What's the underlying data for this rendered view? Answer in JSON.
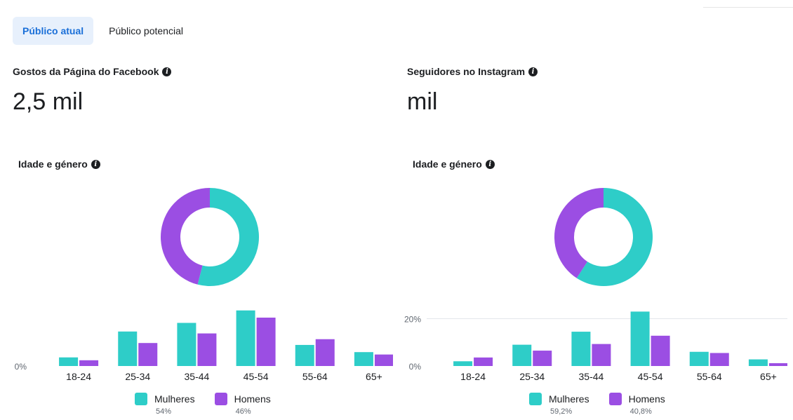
{
  "tabs": [
    {
      "label": "Público atual",
      "active": true
    },
    {
      "label": "Público potencial",
      "active": false
    }
  ],
  "colors": {
    "mulheres": "#2ecdc8",
    "homens": "#9b4ee3",
    "accent": "#1a6fd8"
  },
  "facebook": {
    "metric_title": "Gostos da Página do Facebook",
    "metric_value": "2,5 mil",
    "section_title": "Idade e género",
    "legend": {
      "mulheres_label": "Mulheres",
      "mulheres_pct": "54%",
      "homens_label": "Homens",
      "homens_pct": "46%"
    }
  },
  "instagram": {
    "metric_title": "Seguidores no Instagram",
    "metric_value": "mil",
    "section_title": "Idade e género",
    "legend": {
      "mulheres_label": "Mulheres",
      "mulheres_pct": "59,2%",
      "homens_label": "Homens",
      "homens_pct": "40,8%"
    }
  },
  "chart_data": [
    {
      "type": "pie",
      "labels": [
        "Mulheres",
        "Homens"
      ],
      "values": [
        54,
        46
      ],
      "donut": true
    },
    {
      "type": "bar",
      "categories": [
        "18-24",
        "25-34",
        "35-44",
        "45-54",
        "55-64",
        "65+"
      ],
      "series": [
        {
          "name": "Mulheres",
          "values": [
            1.8,
            7.2,
            9.0,
            11.6,
            4.4,
            2.9
          ]
        },
        {
          "name": "Homens",
          "values": [
            1.2,
            4.8,
            6.8,
            10.1,
            5.6,
            2.4
          ]
        }
      ],
      "yticks": [
        "0%"
      ],
      "ylim": [
        0,
        12
      ]
    },
    {
      "type": "pie",
      "labels": [
        "Mulheres",
        "Homens"
      ],
      "values": [
        59.2,
        40.8
      ],
      "donut": true
    },
    {
      "type": "bar",
      "categories": [
        "18-24",
        "25-34",
        "35-44",
        "45-54",
        "55-64",
        "65+"
      ],
      "series": [
        {
          "name": "Mulheres",
          "values": [
            2.0,
            9.0,
            14.5,
            23.0,
            6.0,
            2.8
          ]
        },
        {
          "name": "Homens",
          "values": [
            3.6,
            6.5,
            9.3,
            12.8,
            5.5,
            1.2
          ]
        }
      ],
      "yticks": [
        "0%",
        "20%"
      ],
      "ylim": [
        0,
        24
      ]
    }
  ]
}
